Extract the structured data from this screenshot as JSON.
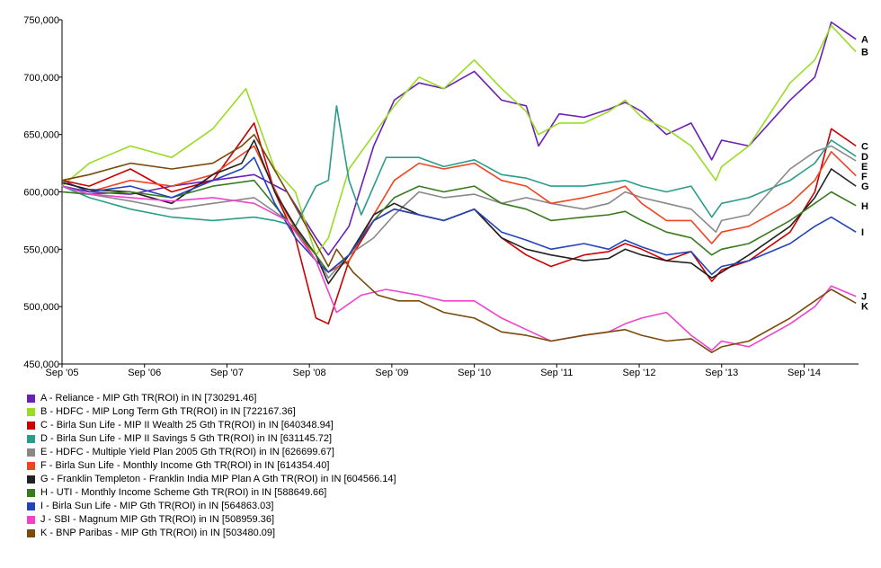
{
  "chart_data": {
    "type": "line",
    "ylim": [
      450000,
      750000
    ],
    "y_ticks": [
      "750,000",
      "700,000",
      "650,000",
      "600,000",
      "550,000",
      "500,000",
      "450,000"
    ],
    "y_tick_values": [
      750000,
      700000,
      650000,
      600000,
      550000,
      500000,
      450000
    ],
    "x_tick_labels": [
      "Sep '05",
      "Sep '06",
      "Sep '07",
      "Sep '08",
      "Sep '09",
      "Sep '10",
      "Sep '11",
      "Sep '12",
      "Sep '13",
      "Sep '14"
    ],
    "x_tick_values": [
      2005.67,
      2006.67,
      2007.67,
      2008.67,
      2009.67,
      2010.67,
      2011.67,
      2012.67,
      2013.67,
      2014.67
    ],
    "xlim": [
      2005.67,
      2015.33
    ],
    "grid": false,
    "legend_position": "bottom-left",
    "series": [
      {
        "key": "A",
        "legend": "A - Reliance - MIP Gth TR(ROI) in IN [730291.46]",
        "color": "#6a1fb5",
        "x": [
          2005.67,
          2006.0,
          2006.5,
          2007.0,
          2007.5,
          2008.0,
          2008.4,
          2008.75,
          2008.9,
          2009.15,
          2009.45,
          2009.7,
          2010.0,
          2010.3,
          2010.67,
          2011.0,
          2011.3,
          2011.45,
          2011.7,
          2012.0,
          2012.3,
          2012.5,
          2012.7,
          2013.0,
          2013.3,
          2013.55,
          2013.67,
          2014.0,
          2014.5,
          2014.8,
          2015.0,
          2015.3
        ],
        "y": [
          610000,
          600000,
          598000,
          605000,
          610000,
          615000,
          600000,
          560000,
          545000,
          570000,
          640000,
          680000,
          695000,
          690000,
          705000,
          680000,
          675000,
          640000,
          668000,
          665000,
          672000,
          678000,
          670000,
          650000,
          660000,
          628000,
          645000,
          640000,
          680000,
          700000,
          748000,
          733000
        ]
      },
      {
        "key": "B",
        "legend": "B - HDFC - MIP Long Term Gth TR(ROI) in IN [722167.36]",
        "color": "#99dd22",
        "x": [
          2005.67,
          2006.0,
          2006.5,
          2007.0,
          2007.5,
          2007.9,
          2008.25,
          2008.5,
          2008.75,
          2008.9,
          2009.15,
          2009.45,
          2009.7,
          2010.0,
          2010.3,
          2010.67,
          2011.0,
          2011.3,
          2011.45,
          2011.7,
          2012.0,
          2012.3,
          2012.5,
          2012.7,
          2013.0,
          2013.3,
          2013.6,
          2013.67,
          2014.0,
          2014.5,
          2014.8,
          2015.0,
          2015.3
        ],
        "y": [
          605000,
          625000,
          640000,
          630000,
          655000,
          690000,
          620000,
          600000,
          545000,
          560000,
          620000,
          650000,
          675000,
          700000,
          690000,
          715000,
          690000,
          670000,
          650000,
          660000,
          660000,
          670000,
          680000,
          665000,
          655000,
          640000,
          610000,
          622000,
          640000,
          695000,
          715000,
          745000,
          722000
        ]
      },
      {
        "key": "C",
        "legend": "C - Birla Sun Life - MIP II Wealth 25 Gth TR(ROI) in IN [640348.94]",
        "color": "#cc0000",
        "x": [
          2005.67,
          2006.0,
          2006.5,
          2007.0,
          2007.5,
          2007.8,
          2008.0,
          2008.25,
          2008.5,
          2008.75,
          2008.9,
          2009.15,
          2009.45,
          2009.7,
          2010.0,
          2010.3,
          2010.67,
          2011.0,
          2011.3,
          2011.6,
          2012.0,
          2012.3,
          2012.5,
          2012.7,
          2013.0,
          2013.3,
          2013.55,
          2013.67,
          2014.0,
          2014.5,
          2014.8,
          2015.0,
          2015.3
        ],
        "y": [
          610000,
          605000,
          620000,
          600000,
          610000,
          640000,
          660000,
          600000,
          560000,
          490000,
          485000,
          540000,
          575000,
          585000,
          580000,
          575000,
          585000,
          560000,
          545000,
          535000,
          545000,
          548000,
          555000,
          550000,
          540000,
          548000,
          522000,
          532000,
          540000,
          565000,
          600000,
          655000,
          640000
        ]
      },
      {
        "key": "D",
        "legend": "D - Birla Sun Life - MIP II Savings 5 Gth TR(ROI) in IN [631145.72]",
        "color": "#2a9c8a",
        "x": [
          2005.67,
          2006.0,
          2006.5,
          2007.0,
          2007.5,
          2008.0,
          2008.25,
          2008.5,
          2008.75,
          2008.9,
          2009.0,
          2009.15,
          2009.3,
          2009.6,
          2010.0,
          2010.3,
          2010.67,
          2011.0,
          2011.3,
          2011.6,
          2012.0,
          2012.3,
          2012.5,
          2012.7,
          2013.0,
          2013.3,
          2013.55,
          2013.67,
          2014.0,
          2014.5,
          2014.8,
          2015.0,
          2015.3
        ],
        "y": [
          605000,
          595000,
          585000,
          578000,
          575000,
          578000,
          575000,
          570000,
          605000,
          610000,
          675000,
          610000,
          580000,
          630000,
          630000,
          622000,
          628000,
          615000,
          612000,
          605000,
          605000,
          608000,
          610000,
          605000,
          600000,
          605000,
          578000,
          590000,
          595000,
          610000,
          625000,
          645000,
          631000
        ]
      },
      {
        "key": "E",
        "legend": "E - HDFC - Multiple Yield Plan 2005 Gth TR(ROI) in IN [626699.67]",
        "color": "#888888",
        "x": [
          2005.67,
          2006.0,
          2006.5,
          2007.0,
          2007.5,
          2008.0,
          2008.4,
          2008.75,
          2008.9,
          2009.15,
          2009.45,
          2009.7,
          2010.0,
          2010.3,
          2010.67,
          2011.0,
          2011.3,
          2011.6,
          2012.0,
          2012.3,
          2012.5,
          2012.7,
          2013.0,
          2013.3,
          2013.6,
          2013.67,
          2014.0,
          2014.5,
          2014.8,
          2015.0,
          2015.3
        ],
        "y": [
          600000,
          598000,
          592000,
          585000,
          590000,
          595000,
          575000,
          545000,
          525000,
          545000,
          560000,
          580000,
          600000,
          595000,
          598000,
          590000,
          595000,
          590000,
          585000,
          590000,
          600000,
          595000,
          590000,
          585000,
          565000,
          575000,
          580000,
          620000,
          635000,
          640000,
          627000
        ]
      },
      {
        "key": "F",
        "legend": "F - Birla Sun Life - Monthly Income Gth TR(ROI) in IN [614354.40]",
        "color": "#ee4422",
        "x": [
          2005.67,
          2006.0,
          2006.5,
          2007.0,
          2007.5,
          2008.0,
          2008.4,
          2008.75,
          2008.9,
          2009.15,
          2009.45,
          2009.7,
          2010.0,
          2010.3,
          2010.67,
          2011.0,
          2011.3,
          2011.6,
          2012.0,
          2012.3,
          2012.5,
          2012.7,
          2013.0,
          2013.3,
          2013.55,
          2013.67,
          2014.0,
          2014.5,
          2014.8,
          2015.0,
          2015.3
        ],
        "y": [
          605000,
          600000,
          610000,
          605000,
          615000,
          640000,
          580000,
          540000,
          530000,
          540000,
          580000,
          610000,
          625000,
          620000,
          625000,
          610000,
          605000,
          590000,
          595000,
          600000,
          605000,
          590000,
          575000,
          575000,
          555000,
          565000,
          570000,
          590000,
          610000,
          635000,
          614000
        ]
      },
      {
        "key": "G",
        "legend": "G - Franklin Templeton - Franklin India MIP Plan A Gth TR(ROI) in IN [604566.14]",
        "color": "#222222",
        "x": [
          2005.67,
          2006.0,
          2006.5,
          2007.0,
          2007.5,
          2007.85,
          2008.0,
          2008.25,
          2008.5,
          2008.75,
          2008.9,
          2009.15,
          2009.45,
          2009.7,
          2010.0,
          2010.3,
          2010.67,
          2011.0,
          2011.3,
          2011.6,
          2012.0,
          2012.3,
          2012.5,
          2012.7,
          2013.0,
          2013.3,
          2013.55,
          2013.67,
          2014.0,
          2014.5,
          2014.8,
          2015.0,
          2015.3
        ],
        "y": [
          608000,
          602000,
          600000,
          590000,
          615000,
          625000,
          645000,
          600000,
          570000,
          545000,
          520000,
          545000,
          580000,
          590000,
          580000,
          575000,
          585000,
          560000,
          550000,
          545000,
          540000,
          542000,
          550000,
          545000,
          540000,
          538000,
          525000,
          530000,
          545000,
          570000,
          595000,
          620000,
          605000
        ]
      },
      {
        "key": "H",
        "legend": "H - UTI - Monthly Income Scheme Gth TR(ROI) in IN [588649.66]",
        "color": "#3a7a1f",
        "x": [
          2005.67,
          2006.0,
          2006.5,
          2007.0,
          2007.5,
          2008.0,
          2008.4,
          2008.75,
          2008.9,
          2009.15,
          2009.45,
          2009.7,
          2010.0,
          2010.3,
          2010.67,
          2011.0,
          2011.3,
          2011.6,
          2012.0,
          2012.3,
          2012.5,
          2012.7,
          2013.0,
          2013.3,
          2013.55,
          2013.67,
          2014.0,
          2014.5,
          2014.8,
          2015.0,
          2015.3
        ],
        "y": [
          600000,
          598000,
          600000,
          595000,
          605000,
          610000,
          575000,
          545000,
          530000,
          545000,
          575000,
          595000,
          605000,
          600000,
          605000,
          590000,
          585000,
          575000,
          578000,
          580000,
          583000,
          575000,
          565000,
          560000,
          545000,
          550000,
          555000,
          575000,
          590000,
          600000,
          588000
        ]
      },
      {
        "key": "I",
        "legend": "I - Birla Sun Life - MIP Gth TR(ROI) in IN [564863.03]",
        "color": "#2244bb",
        "x": [
          2005.67,
          2006.0,
          2006.5,
          2007.0,
          2007.5,
          2007.85,
          2008.0,
          2008.25,
          2008.5,
          2008.75,
          2008.9,
          2009.15,
          2009.45,
          2009.7,
          2010.0,
          2010.3,
          2010.67,
          2011.0,
          2011.3,
          2011.6,
          2012.0,
          2012.3,
          2012.5,
          2012.7,
          2013.0,
          2013.3,
          2013.55,
          2013.67,
          2014.0,
          2014.5,
          2014.8,
          2015.0,
          2015.3
        ],
        "y": [
          605000,
          600000,
          605000,
          595000,
          610000,
          620000,
          630000,
          590000,
          560000,
          540000,
          530000,
          545000,
          575000,
          585000,
          580000,
          575000,
          585000,
          565000,
          558000,
          550000,
          555000,
          550000,
          558000,
          552000,
          545000,
          548000,
          528000,
          535000,
          540000,
          555000,
          570000,
          578000,
          565000
        ]
      },
      {
        "key": "J",
        "legend": "J - SBI - Magnum MIP Gth TR(ROI) in IN [508959.36]",
        "color": "#ee44cc",
        "x": [
          2005.67,
          2006.0,
          2006.5,
          2007.0,
          2007.5,
          2008.0,
          2008.4,
          2008.75,
          2009.0,
          2009.3,
          2009.6,
          2010.0,
          2010.3,
          2010.67,
          2011.0,
          2011.3,
          2011.6,
          2012.0,
          2012.3,
          2012.5,
          2012.7,
          2013.0,
          2013.3,
          2013.55,
          2013.67,
          2014.0,
          2014.5,
          2014.8,
          2015.0,
          2015.3
        ],
        "y": [
          605000,
          598000,
          595000,
          592000,
          595000,
          590000,
          575000,
          540000,
          495000,
          510000,
          515000,
          510000,
          505000,
          505000,
          490000,
          480000,
          470000,
          475000,
          478000,
          485000,
          490000,
          495000,
          475000,
          462000,
          470000,
          465000,
          485000,
          500000,
          518000,
          509000
        ]
      },
      {
        "key": "K",
        "legend": "K - BNP Paribas - MIP Gth TR(ROI) in IN [503480.09]",
        "color": "#7a4a0a",
        "x": [
          2005.67,
          2006.0,
          2006.5,
          2007.0,
          2007.5,
          2007.85,
          2008.0,
          2008.4,
          2008.75,
          2008.9,
          2009.0,
          2009.2,
          2009.5,
          2009.75,
          2010.0,
          2010.3,
          2010.67,
          2011.0,
          2011.3,
          2011.6,
          2012.0,
          2012.3,
          2012.5,
          2012.7,
          2013.0,
          2013.3,
          2013.55,
          2013.67,
          2014.0,
          2014.5,
          2014.8,
          2015.0,
          2015.3
        ],
        "y": [
          610000,
          615000,
          625000,
          620000,
          625000,
          640000,
          650000,
          600000,
          555000,
          535000,
          550000,
          530000,
          510000,
          505000,
          505000,
          495000,
          490000,
          478000,
          475000,
          470000,
          475000,
          478000,
          480000,
          475000,
          470000,
          472000,
          460000,
          465000,
          470000,
          490000,
          505000,
          515000,
          503000
        ]
      }
    ]
  }
}
